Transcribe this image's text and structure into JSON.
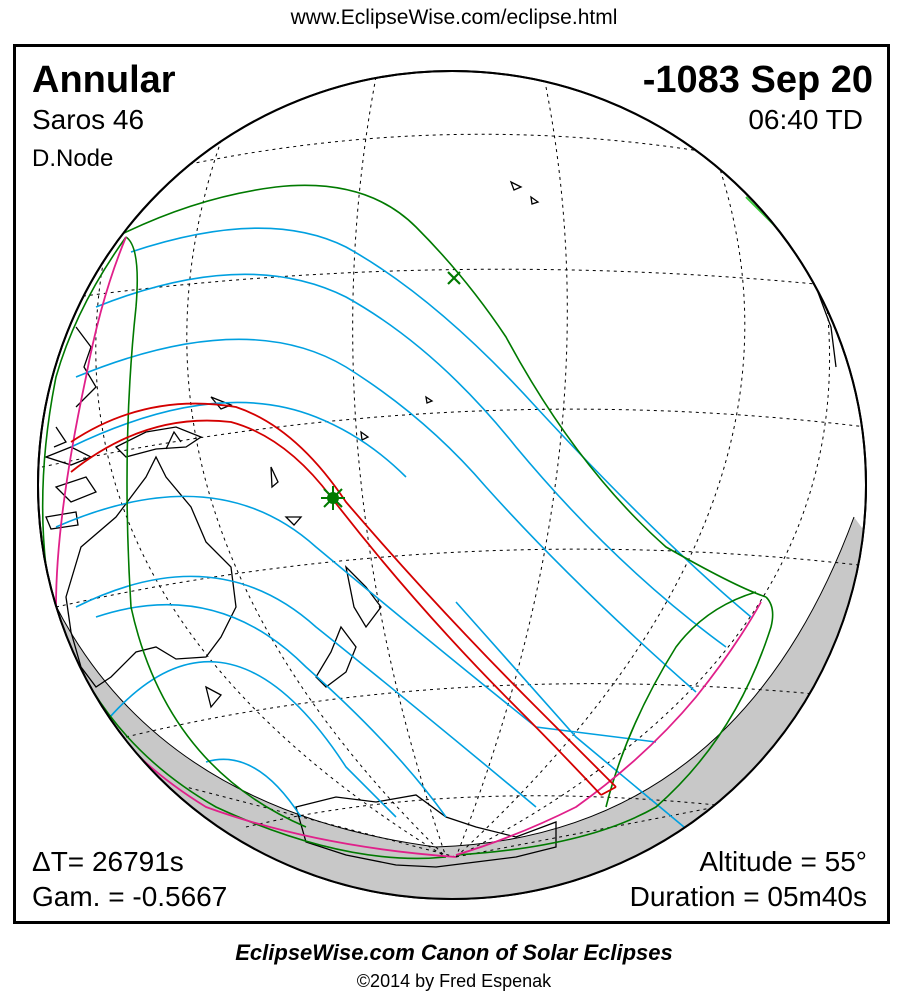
{
  "header": {
    "url": "www.EclipseWise.com/eclipse.html"
  },
  "eclipse": {
    "type": "Annular",
    "date": "-1083 Sep 20",
    "saros": "Saros  46",
    "time": "06:40 TD",
    "node": "D.Node",
    "delta_t": "ΔT=  26791s",
    "gamma": "Gam. = -0.5667",
    "altitude": "Altitude = 55°",
    "duration": "Duration = 05m40s"
  },
  "footer": {
    "title": "EclipseWise.com Canon of Solar Eclipses",
    "copyright": "©2014 by Fred Espenak"
  },
  "colors": {
    "central_path": "#d40000",
    "penumbra_limits": "#00a0e0",
    "outer_limits": "#007a00",
    "rise_set_curve": "#e0208a",
    "night_shade": "#c8c8c8"
  }
}
